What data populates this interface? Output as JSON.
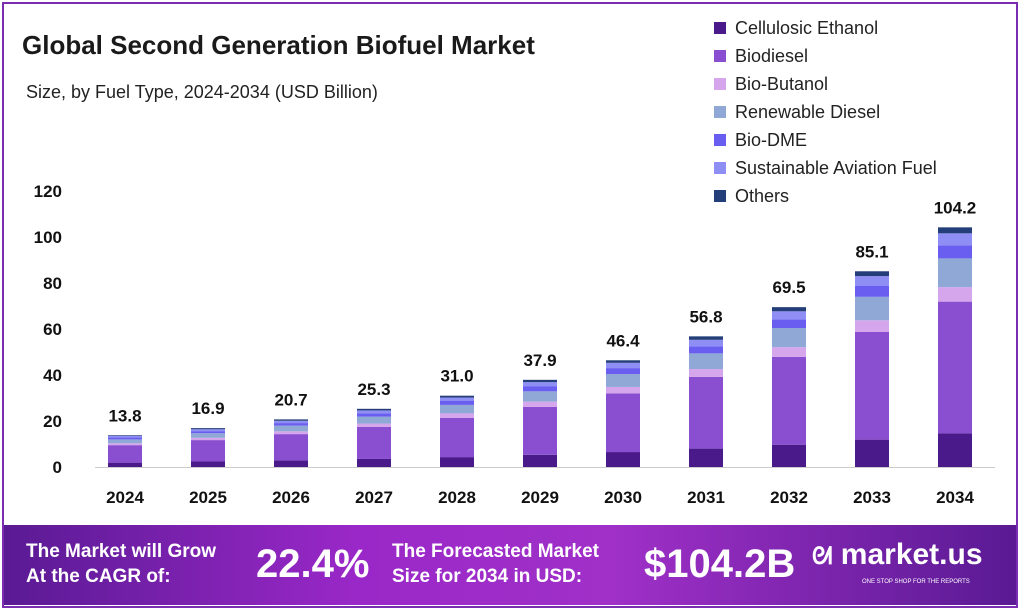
{
  "chart_data": {
    "type": "bar",
    "stacked": true,
    "title": "Global Second Generation Biofuel Market",
    "subtitle": "Size, by Fuel Type, 2024-2034 (USD Billion)",
    "categories": [
      "2024",
      "2025",
      "2026",
      "2027",
      "2028",
      "2029",
      "2030",
      "2031",
      "2032",
      "2033",
      "2034"
    ],
    "totals": [
      "13.8",
      "16.9",
      "20.7",
      "25.3",
      "31.0",
      "37.9",
      "46.4",
      "56.8",
      "69.5",
      "85.1",
      "104.2"
    ],
    "ylim": [
      0,
      120
    ],
    "yticks": [
      "0",
      "20",
      "40",
      "60",
      "80",
      "100",
      "120"
    ],
    "grid": false,
    "legend_position": "top-right",
    "series": [
      {
        "name": "Cellulosic Ethanol",
        "color": "#4b1a8a",
        "values": [
          1.9,
          2.4,
          2.9,
          3.5,
          4.3,
          5.3,
          6.5,
          8.0,
          9.7,
          11.9,
          14.6
        ]
      },
      {
        "name": "Biodiesel",
        "color": "#8a4fd0",
        "values": [
          7.6,
          9.3,
          11.4,
          13.9,
          17.1,
          20.8,
          25.5,
          31.2,
          38.2,
          46.8,
          57.3
        ]
      },
      {
        "name": "Bio-Butanol",
        "color": "#d6a6ec",
        "values": [
          0.8,
          1.0,
          1.2,
          1.5,
          1.9,
          2.3,
          2.8,
          3.4,
          4.2,
          5.1,
          6.3
        ]
      },
      {
        "name": "Renewable Diesel",
        "color": "#8fa8d6",
        "values": [
          1.7,
          2.0,
          2.5,
          3.0,
          3.7,
          4.5,
          5.6,
          6.8,
          8.3,
          10.2,
          12.5
        ]
      },
      {
        "name": "Bio-DME",
        "color": "#6a5ef0",
        "values": [
          0.8,
          0.9,
          1.1,
          1.4,
          1.7,
          2.1,
          2.6,
          3.1,
          3.8,
          4.7,
          5.7
        ]
      },
      {
        "name": "Sustainable Aviation Fuel",
        "color": "#8e8ef5",
        "values": [
          0.7,
          0.8,
          1.0,
          1.3,
          1.5,
          1.9,
          2.3,
          2.8,
          3.5,
          4.3,
          5.2
        ]
      },
      {
        "name": "Others",
        "color": "#233e78",
        "values": [
          0.3,
          0.5,
          0.6,
          0.7,
          0.8,
          1.0,
          1.1,
          1.5,
          1.8,
          2.1,
          2.6
        ]
      }
    ]
  },
  "footer": {
    "cagr_text_1": "The Market will Grow",
    "cagr_text_2": "At the CAGR of:",
    "cagr_value": "22.4%",
    "forecast_text_1": "The Forecasted Market",
    "forecast_text_2": "Size for 2034 in USD:",
    "forecast_value": "$104.2B",
    "brand": "market.us",
    "tagline": "ONE STOP SHOP FOR THE REPORTS"
  }
}
